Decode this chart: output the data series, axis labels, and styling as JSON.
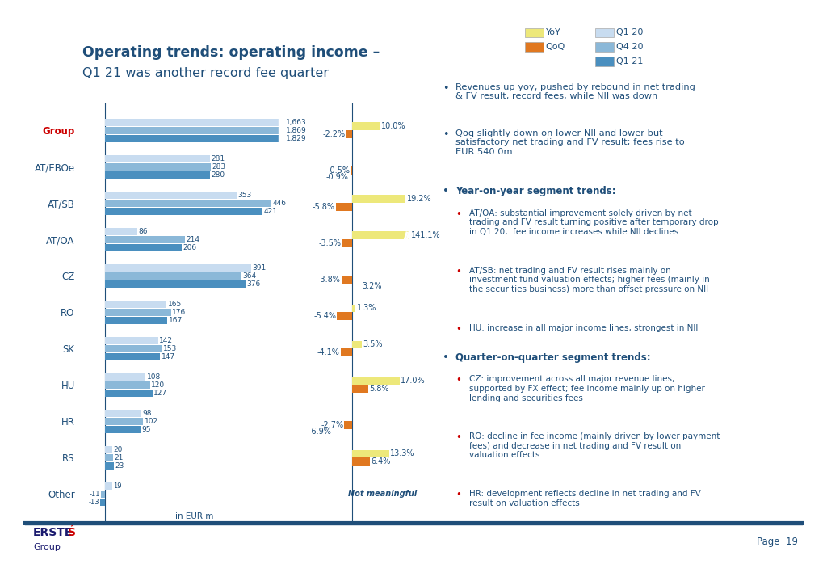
{
  "title_bold": "Operating trends: operating income –",
  "title_regular": "Q1 21 was another record fee quarter",
  "segments": [
    "Group",
    "AT/EBOe",
    "AT/SB",
    "AT/OA",
    "CZ",
    "RO",
    "SK",
    "HU",
    "HR",
    "RS",
    "Other"
  ],
  "q1_20": [
    1663,
    281,
    353,
    86,
    391,
    165,
    142,
    108,
    98,
    20,
    19
  ],
  "q4_20": [
    1869,
    283,
    446,
    214,
    364,
    176,
    153,
    120,
    102,
    21,
    null
  ],
  "q1_21": [
    1829,
    280,
    421,
    206,
    376,
    167,
    147,
    127,
    95,
    23,
    null
  ],
  "other_q4_20": -11,
  "other_q1_21": -13,
  "yoy_pct": [
    10.0,
    null,
    19.2,
    141.1,
    null,
    1.3,
    3.5,
    17.0,
    null,
    13.3,
    null
  ],
  "qoq_pct": [
    -2.2,
    -0.5,
    -5.8,
    -3.5,
    -3.8,
    -5.4,
    -4.1,
    5.8,
    -2.7,
    6.4,
    null
  ],
  "qoq2_pct": [
    null,
    -0.9,
    null,
    null,
    3.2,
    null,
    null,
    null,
    -6.9,
    null,
    null
  ],
  "colors": {
    "q1_20": "#C8DCF0",
    "q4_20": "#8BB8D8",
    "q1_21": "#4A8FBF",
    "yoy": "#EDE87A",
    "qoq": "#E07820",
    "axis_line": "#1F4E79",
    "title_blue": "#1F4E79",
    "group_red": "#CC0000",
    "text_blue": "#1F4E79",
    "bullet_red": "#CC0000",
    "background": "#FFFFFF"
  },
  "page": "Page  19"
}
